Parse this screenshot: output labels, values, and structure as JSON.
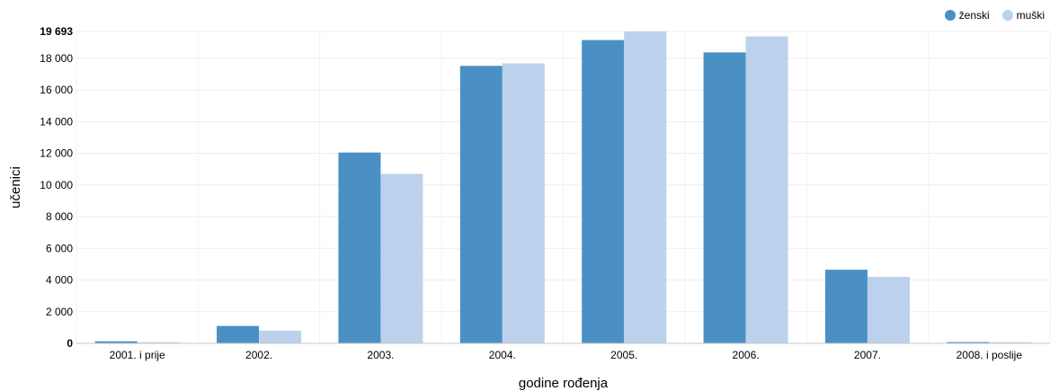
{
  "chart_data": {
    "type": "bar",
    "xlabel": "godine rođenja",
    "ylabel": "učenici",
    "ylim": [
      0,
      19693
    ],
    "y_ticks": [
      0,
      2000,
      4000,
      6000,
      8000,
      10000,
      12000,
      14000,
      16000,
      18000,
      19693
    ],
    "y_tick_labels": [
      "0",
      "2 000",
      "4 000",
      "6 000",
      "8 000",
      "10 000",
      "12 000",
      "14 000",
      "16 000",
      "18 000",
      "19 693"
    ],
    "grid": true,
    "legend_position": "top-right",
    "categories": [
      "2001. i prije",
      "2002.",
      "2003.",
      "2004.",
      "2005.",
      "2006.",
      "2007.",
      "2008. i poslije"
    ],
    "series": [
      {
        "name": "ženski",
        "color": "#4a90c4",
        "values": [
          130,
          1100,
          12050,
          17520,
          19150,
          18370,
          4650,
          80
        ]
      },
      {
        "name": "muški",
        "color": "#bcd1ec",
        "values": [
          70,
          800,
          10700,
          17680,
          19693,
          19380,
          4200,
          70
        ]
      }
    ]
  }
}
